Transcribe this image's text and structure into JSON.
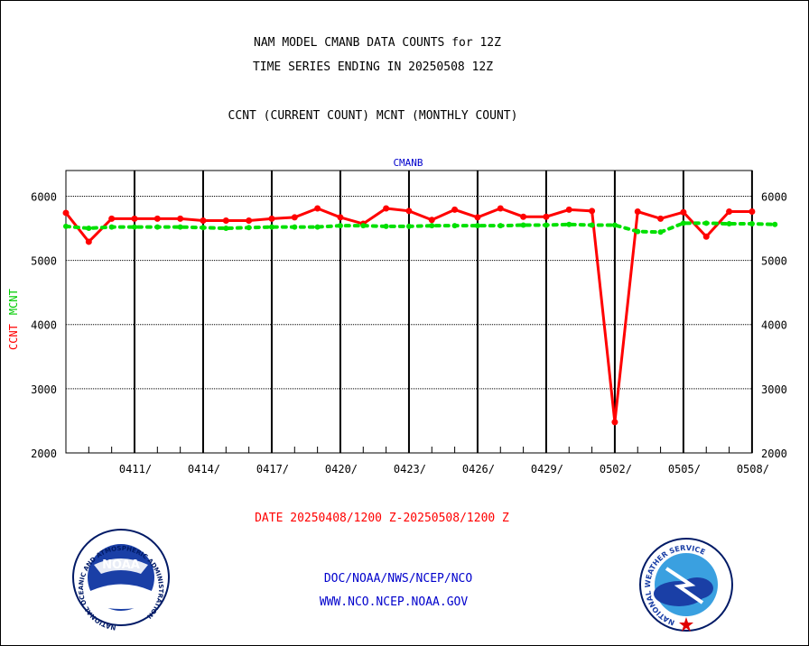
{
  "header": {
    "title_line1": "NAM MODEL CMANB DATA COUNTS for 12Z",
    "title_line2": "TIME SERIES ENDING IN 20250508 12Z",
    "subtitle": "CCNT (CURRENT COUNT) MCNT (MONTHLY COUNT)"
  },
  "chart_data": {
    "type": "line",
    "title": "CMANB",
    "ylabel_parts": [
      "CCNT",
      "MCNT"
    ],
    "ylim": [
      2000,
      6400
    ],
    "yticks": [
      2000,
      3000,
      4000,
      5000,
      6000
    ],
    "ytick_labels": [
      "2000",
      "3000",
      "4000",
      "5000",
      "6000"
    ],
    "grid": true,
    "x_range": [
      "20250408",
      "20250508"
    ],
    "major_ticks": [
      {
        "date": "20250411",
        "label": "0411/"
      },
      {
        "date": "20250414",
        "label": "0414/"
      },
      {
        "date": "20250417",
        "label": "0417/"
      },
      {
        "date": "20250420",
        "label": "0420/"
      },
      {
        "date": "20250423",
        "label": "0423/"
      },
      {
        "date": "20250426",
        "label": "0426/"
      },
      {
        "date": "20250429",
        "label": "0429/"
      },
      {
        "date": "20250502",
        "label": "0502/"
      },
      {
        "date": "20250505",
        "label": "0505/"
      },
      {
        "date": "20250508",
        "label": "0508/"
      }
    ],
    "xlabel": "DATE 20250408/1200 Z-20250508/1200 Z",
    "x": [
      "20250408",
      "20250409",
      "20250410",
      "20250411",
      "20250412",
      "20250413",
      "20250414",
      "20250415",
      "20250416",
      "20250417",
      "20250418",
      "20250419",
      "20250420",
      "20250421",
      "20250422",
      "20250423",
      "20250424",
      "20250425",
      "20250426",
      "20250427",
      "20250428",
      "20250429",
      "20250430",
      "20250501",
      "20250502",
      "20250503",
      "20250504",
      "20250505",
      "20250506",
      "20250507",
      "20250508",
      "20250509"
    ],
    "series": [
      {
        "name": "CCNT",
        "color": "#ff0000",
        "style": "solid",
        "values": [
          5740,
          5290,
          5650,
          5650,
          5650,
          5650,
          5620,
          5620,
          5620,
          5650,
          5670,
          5810,
          5670,
          5570,
          5810,
          5770,
          5630,
          5790,
          5670,
          5810,
          5680,
          5680,
          5790,
          5770,
          2480,
          5760,
          5650,
          5750,
          5370,
          5760,
          5760,
          null
        ]
      },
      {
        "name": "MCNT",
        "color": "#00e000",
        "style": "dotted",
        "values": [
          5530,
          5500,
          5520,
          5520,
          5520,
          5520,
          5510,
          5500,
          5510,
          5520,
          5520,
          5520,
          5540,
          5540,
          5530,
          5530,
          5540,
          5540,
          5540,
          5540,
          5550,
          5550,
          5560,
          5550,
          5550,
          5450,
          5440,
          5580,
          5580,
          5570,
          5570,
          5560
        ]
      }
    ]
  },
  "footer": {
    "line1": "DOC/NOAA/NWS/NCEP/NCO",
    "line2": "WWW.NCO.NCEP.NOAA.GOV"
  },
  "logos": {
    "noaa": {
      "center": "NOAA",
      "ring": "NATIONAL OCEANIC AND ATMOSPHERIC ADMINISTRATION",
      "ring_bottom": "U.S. DEPARTMENT OF COMMERCE"
    },
    "nws": {
      "ring": "NATIONAL WEATHER SERVICE"
    }
  }
}
